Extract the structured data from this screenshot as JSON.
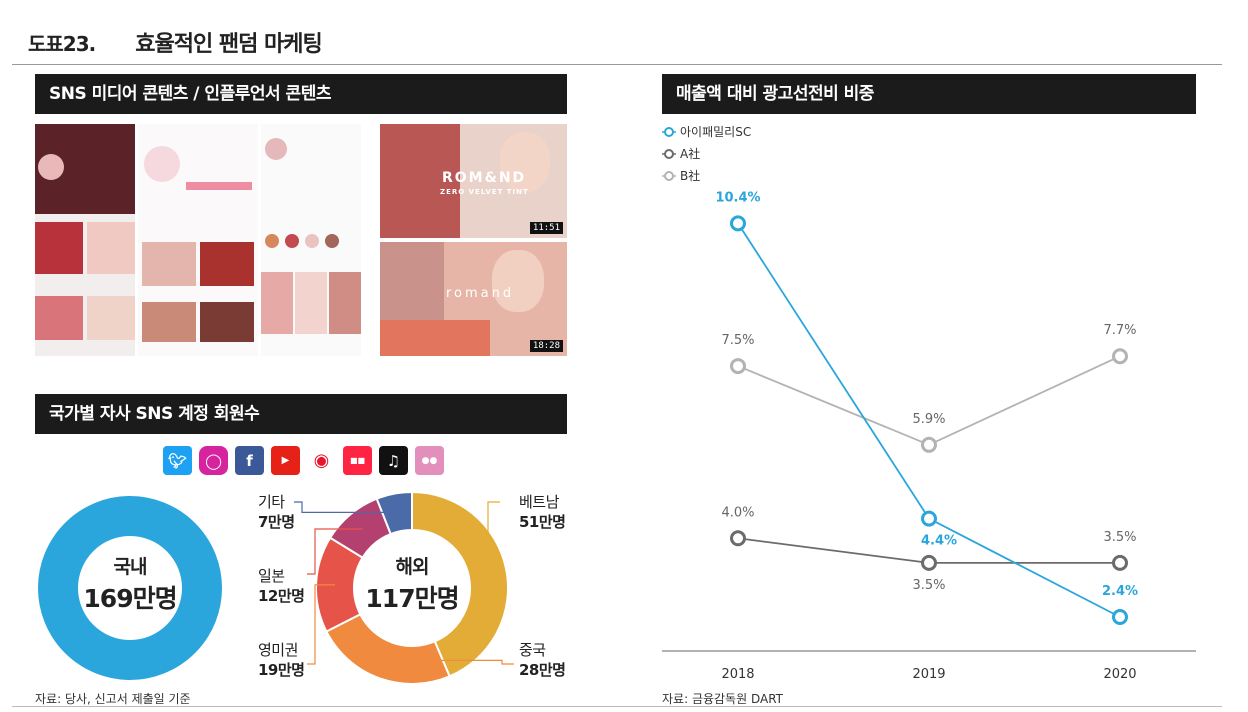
{
  "header": {
    "figure_no": "도표23.",
    "title": "효율적인 팬덤 마케팅"
  },
  "panels": {
    "sns_content": "SNS 미디어 콘텐츠 / 인플루언서 콘텐츠",
    "sns_members": "국가별 자사 SNS 계정 회원수",
    "ad_ratio": "매출액 대비 광고선전비 비중"
  },
  "collage": {
    "brand_a": "ROM&ND",
    "brand_sub": "ZERO VELVET TINT",
    "brand_b": "romand",
    "time_1": "11:51",
    "time_2": "18:28"
  },
  "social_icons": [
    "twitter-icon",
    "instagram-icon",
    "facebook-icon",
    "youtube-icon",
    "weibo-icon",
    "xiaohongshu-icon",
    "tiktok-icon",
    "other-app-icon"
  ],
  "domestic": {
    "label": "국내",
    "value": "169만명",
    "color": "#2aa6dc"
  },
  "overseas": {
    "label": "해외",
    "value": "117만명",
    "segments": [
      {
        "name": "베트남",
        "value_text": "51만명",
        "value": 51,
        "color": "#e3ac36"
      },
      {
        "name": "중국",
        "value_text": "28만명",
        "value": 28,
        "color": "#f08a3e"
      },
      {
        "name": "영미권",
        "value_text": "19만명",
        "value": 19,
        "color": "#e55349"
      },
      {
        "name": "일본",
        "value_text": "12만명",
        "value": 12,
        "color": "#b4406f"
      },
      {
        "name": "기타",
        "value_text": "7만명",
        "value": 7,
        "color": "#4a6aa8"
      }
    ]
  },
  "sources": {
    "left": "자료: 당사, 신고서 제출일 기준",
    "right": "자료: 금융감독원 DART"
  },
  "chart_data": {
    "type": "line",
    "x": [
      "2018",
      "2019",
      "2020"
    ],
    "series": [
      {
        "name": "아이패밀리SC",
        "values": [
          10.4,
          4.4,
          2.4
        ],
        "labels": [
          "10.4%",
          "4.4%",
          "2.4%"
        ],
        "color": "#2aa6dc"
      },
      {
        "name": "A社",
        "values": [
          4.0,
          3.5,
          3.5
        ],
        "labels": [
          "4.0%",
          "3.5%",
          "3.5%"
        ],
        "color": "#6b6b6b"
      },
      {
        "name": "B社",
        "values": [
          7.5,
          5.9,
          7.7
        ],
        "labels": [
          "7.5%",
          "5.9%",
          "7.7%"
        ],
        "color": "#b3b3b3"
      }
    ],
    "legend_position": "top-left",
    "grid": false
  }
}
